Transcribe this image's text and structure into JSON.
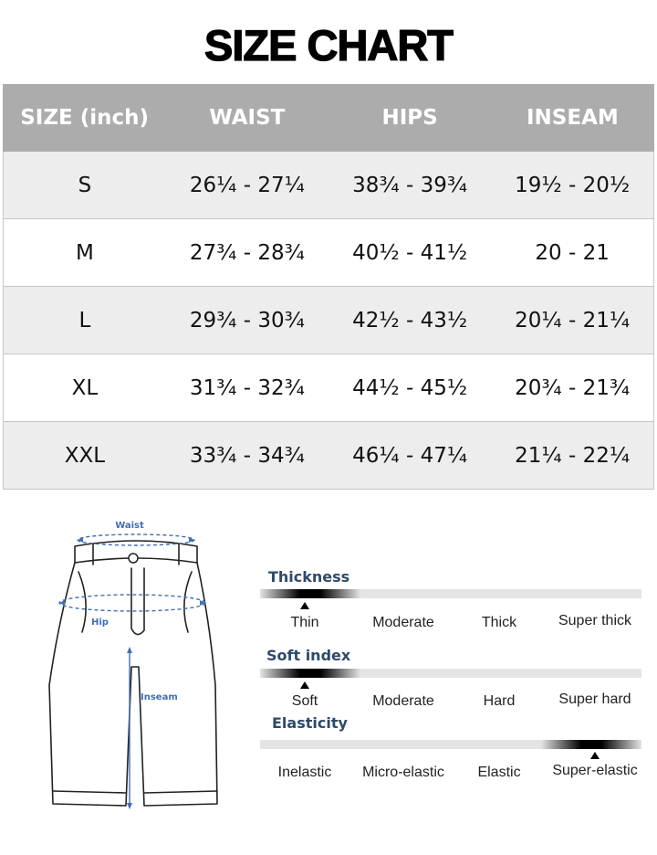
{
  "title": "SIZE CHART",
  "table": {
    "headers": [
      "SIZE (inch)",
      "WAIST",
      "HIPS",
      "INSEAM"
    ],
    "rows": [
      {
        "size": "S",
        "waist": "26¼ - 27¼",
        "hips": "38¾ - 39¾",
        "inseam": "19½ - 20½"
      },
      {
        "size": "M",
        "waist": "27¾ - 28¾",
        "hips": "40½ - 41½",
        "inseam": "20 - 21"
      },
      {
        "size": "L",
        "waist": "29¾ - 30¾",
        "hips": "42½ - 43½",
        "inseam": "20¼ - 21¼"
      },
      {
        "size": "XL",
        "waist": "31¾ - 32¾",
        "hips": "44½ - 45½",
        "inseam": "20¾ - 21¾"
      },
      {
        "size": "XXL",
        "waist": "33¾ - 34¾",
        "hips": "46¼ - 47¼",
        "inseam": "21¼ - 22¼"
      }
    ]
  },
  "diagram": {
    "waist_label": "Waist",
    "hip_label": "Hip",
    "inseam_label": "Inseam",
    "measure_color": "#3f6fb5"
  },
  "fabric": {
    "thickness": {
      "title": "Thickness",
      "options": [
        "Thin",
        "Moderate",
        "Thick",
        "Super thick"
      ],
      "selected": "Thin"
    },
    "soft_index": {
      "title": "Soft index",
      "options": [
        "Soft",
        "Moderate",
        "Hard",
        "Super hard"
      ],
      "selected": "Soft"
    },
    "elasticity": {
      "title": "Elasticity",
      "options": [
        "Inelastic",
        "Micro-elastic",
        "Elastic",
        "Super-elastic"
      ],
      "selected": "Super-elastic"
    },
    "title_color": "#2e4a6b"
  }
}
